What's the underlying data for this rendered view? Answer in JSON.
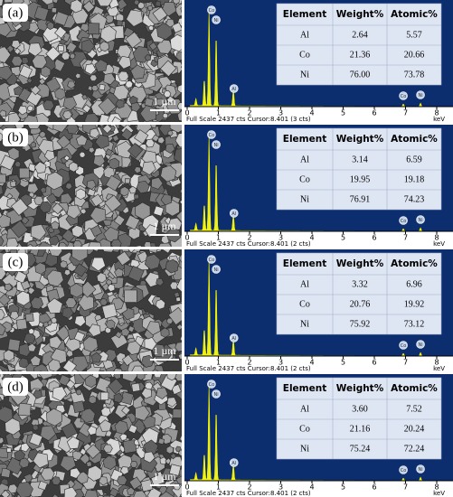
{
  "panels": [
    {
      "label": "(a)",
      "scale_bar": "1 µm",
      "footer": "Full Scale 2437 cts Cursor:8.401 (3 cts)",
      "table": {
        "header": [
          "Element",
          "Weight%",
          "Atomic%"
        ],
        "rows": [
          [
            "Al",
            "2.64",
            "5.57"
          ],
          [
            "Co",
            "21.36",
            "20.66"
          ],
          [
            "Ni",
            "76.00",
            "73.78"
          ]
        ]
      }
    },
    {
      "label": "(b)",
      "scale_bar": "1 µm",
      "footer": "Full Scale 2437 cts Cursor:8.401 (2 cts)",
      "table": {
        "header": [
          "Element",
          "Weight%",
          "Atomic%"
        ],
        "rows": [
          [
            "Al",
            "3.14",
            "6.59"
          ],
          [
            "Co",
            "19.95",
            "19.18"
          ],
          [
            "Ni",
            "76.91",
            "74.23"
          ]
        ]
      }
    },
    {
      "label": "(c)",
      "scale_bar": "1 µm",
      "footer": "Full Scale 2437 cts Cursor:8.401 (2 cts)",
      "table": {
        "header": [
          "Element",
          "Weight%",
          "Atomic%"
        ],
        "rows": [
          [
            "Al",
            "3.32",
            "6.96"
          ],
          [
            "Co",
            "20.76",
            "19.92"
          ],
          [
            "Ni",
            "75.92",
            "73.12"
          ]
        ]
      }
    },
    {
      "label": "(d)",
      "scale_bar": "1 µm",
      "footer": "Full Scale 2437 cts Cursor:8.401 (2 cts)",
      "table": {
        "header": [
          "Element",
          "Weight%",
          "Atomic%"
        ],
        "rows": [
          [
            "Al",
            "3.60",
            "7.52"
          ],
          [
            "Co",
            "21.16",
            "20.24"
          ],
          [
            "Ni",
            "75.24",
            "72.24"
          ]
        ]
      }
    }
  ],
  "axis": {
    "ticks": [
      "0",
      "1",
      "2",
      "3",
      "4",
      "5",
      "6",
      "7",
      "8"
    ],
    "unit": "keV"
  },
  "peak_labels": [
    "Co",
    "Ni",
    "Al",
    "Co",
    "Ni"
  ]
}
